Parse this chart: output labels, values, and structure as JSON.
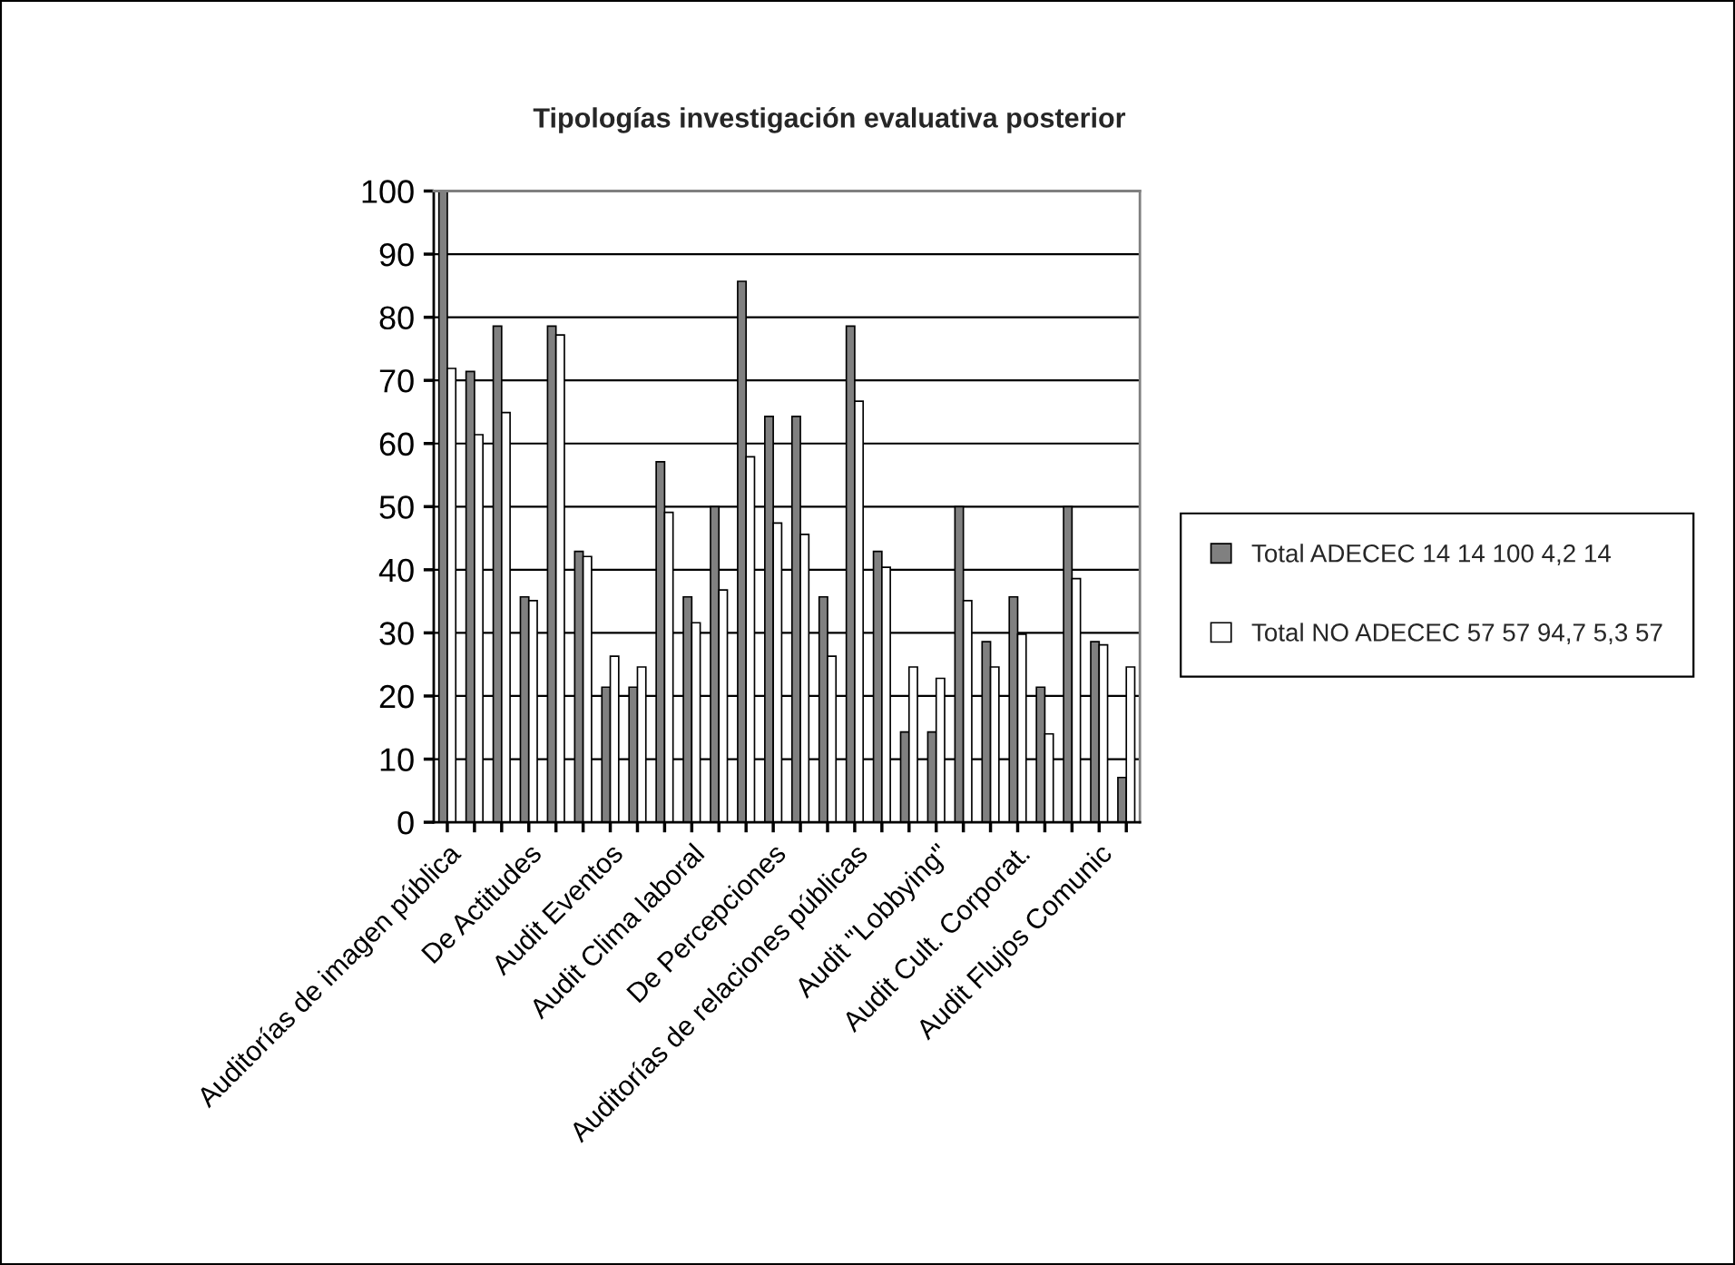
{
  "chart_data": {
    "type": "bar",
    "title": "Tipologías investigación evaluativa posterior",
    "categories": [
      "Auditorías de imagen pública",
      null,
      null,
      "De Actitudes",
      null,
      null,
      "Audit Eventos",
      null,
      null,
      "Audit Clima laboral",
      null,
      null,
      "De Percepciones",
      null,
      null,
      "Auditorías de relaciones públicas",
      null,
      null,
      "Audit \"Lobbying\"",
      null,
      null,
      "Audit Cult. Corporat.",
      null,
      null,
      "Audit Flujos Comunic",
      null
    ],
    "series": [
      {
        "name": "Total ADECEC 14 14 100 4,2 14",
        "color": "#808080",
        "values": [
          100,
          71.4,
          78.6,
          35.7,
          78.6,
          42.9,
          21.4,
          21.4,
          57.1,
          35.7,
          50,
          85.7,
          64.3,
          64.3,
          35.7,
          78.6,
          42.9,
          14.3,
          14.3,
          50,
          28.6,
          35.7,
          21.4,
          50,
          28.6,
          7.1
        ]
      },
      {
        "name": "Total NO ADECEC 57 57 94,7 5,3 57",
        "color": "#ffffff",
        "values": [
          71.9,
          61.4,
          64.9,
          35.1,
          77.2,
          42.1,
          26.3,
          24.6,
          49.1,
          31.6,
          36.8,
          57.9,
          47.4,
          45.6,
          26.3,
          66.7,
          40.4,
          24.6,
          22.8,
          35.1,
          24.6,
          29.8,
          14.0,
          38.6,
          28.1,
          24.6
        ]
      }
    ],
    "ylim": [
      0,
      100
    ],
    "yticks": [
      0,
      10,
      20,
      30,
      40,
      50,
      60,
      70,
      80,
      90,
      100
    ],
    "grid": "y",
    "legend": "right"
  }
}
